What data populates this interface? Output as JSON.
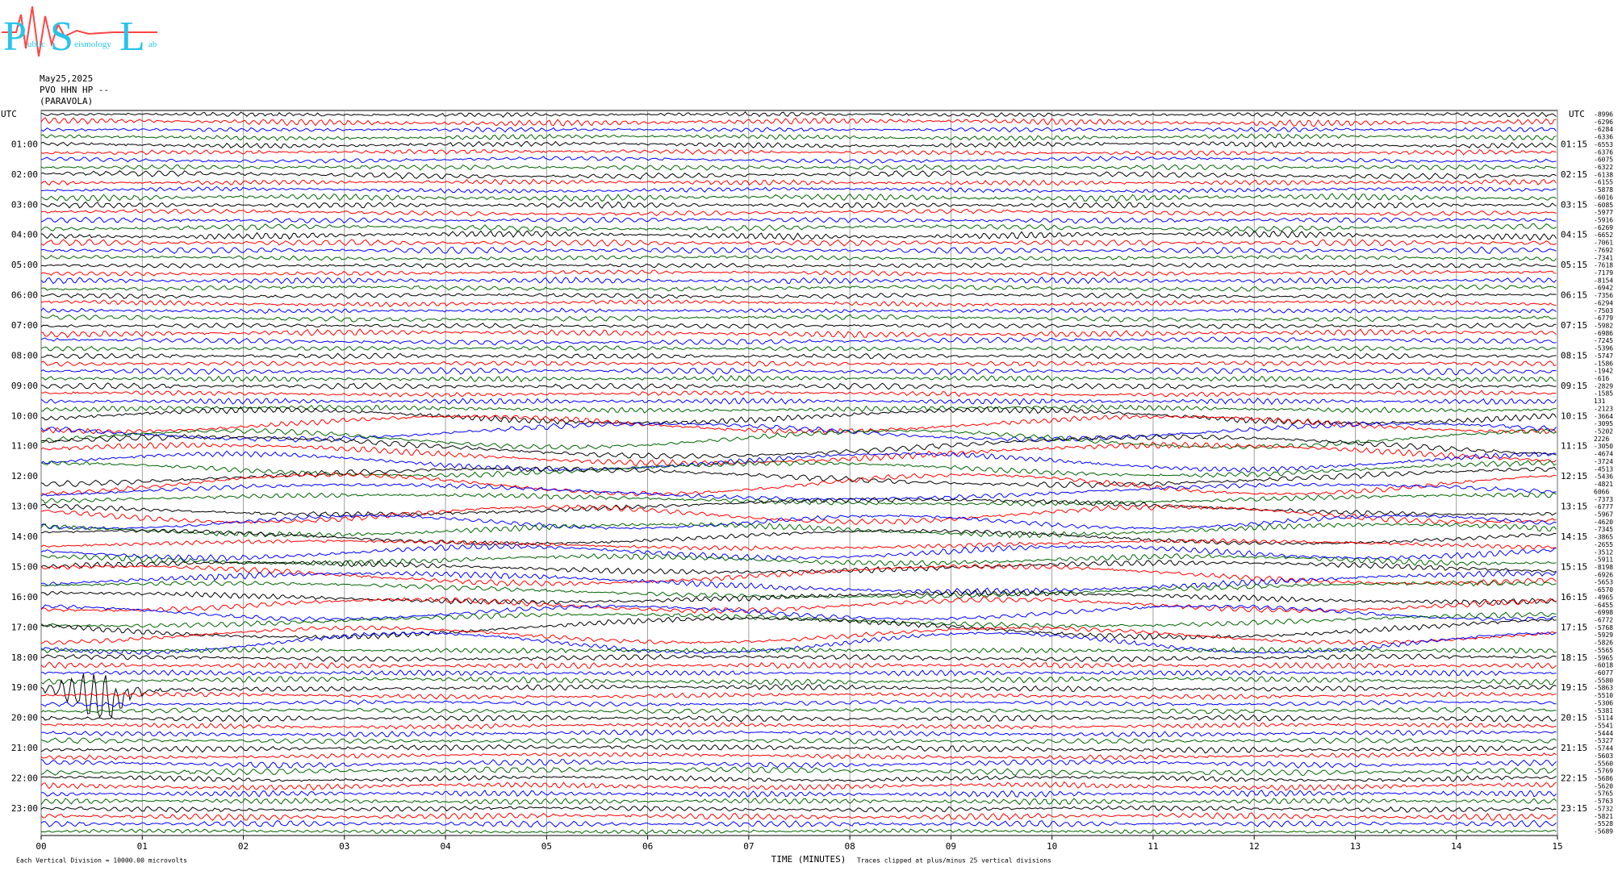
{
  "logo": {
    "letters": [
      "P",
      "S",
      "L"
    ],
    "words": [
      "ublic",
      "eismology",
      "ab"
    ]
  },
  "header": {
    "date": "May25,2025",
    "station": "PVO HHN HP --",
    "location": "(PARAVOLA)"
  },
  "chart_data": {
    "type": "helicorder",
    "xlabel": "TIME (MINUTES)",
    "xlim": [
      0,
      15
    ],
    "xticks": [
      {
        "value": 0,
        "label": "00"
      },
      {
        "value": 1,
        "label": "01"
      },
      {
        "value": 2,
        "label": "02"
      },
      {
        "value": 3,
        "label": "03"
      },
      {
        "value": 4,
        "label": "04"
      },
      {
        "value": 5,
        "label": "05"
      },
      {
        "value": 6,
        "label": "06"
      },
      {
        "value": 7,
        "label": "07"
      },
      {
        "value": 8,
        "label": "08"
      },
      {
        "value": 9,
        "label": "09"
      },
      10,
      11,
      12,
      13,
      14,
      15
    ],
    "grid": true,
    "time_zone": "UTC",
    "left_labels": [
      "01:00",
      "02:00",
      "03:00",
      "04:00",
      "05:00",
      "06:00",
      "07:00",
      "08:00",
      "09:00",
      "10:00",
      "11:00",
      "12:00",
      "13:00",
      "14:00",
      "15:00",
      "16:00",
      "17:00",
      "18:00",
      "19:00",
      "20:00",
      "21:00",
      "22:00",
      "23:00"
    ],
    "right_labels": [
      "01:15",
      "02:15",
      "03:15",
      "04:15",
      "05:15",
      "06:15",
      "07:15",
      "08:15",
      "09:15",
      "10:15",
      "11:15",
      "12:15",
      "13:15",
      "14:15",
      "15:15",
      "16:15",
      "17:15",
      "18:15",
      "19:15",
      "20:15",
      "21:15",
      "22:15",
      "23:15"
    ],
    "trace_values": [
      -8996,
      -6296,
      -6284,
      -6336,
      -6553,
      -6376,
      -6075,
      -6322,
      -6138,
      -6155,
      -5878,
      -6016,
      -6085,
      -5977,
      -5916,
      -6269,
      -6652,
      -7061,
      -7692,
      -7341,
      -7618,
      -7179,
      -8154,
      -6942,
      -7356,
      -6294,
      -7503,
      -6779,
      -5982,
      -6986,
      -7245,
      -5396,
      -5747,
      -1586,
      -1942,
      -616,
      -2829,
      -1585,
      131,
      -2123,
      -3664,
      -3095,
      -5202,
      2226,
      -3050,
      -4674,
      -3724,
      -4513,
      -5436,
      -4821,
      6066,
      -7373,
      -6777,
      -5967,
      -4620,
      -7345,
      -3865,
      -2655,
      -3512,
      -5911,
      -8198,
      -6926,
      -5653,
      -6570,
      -4965,
      -6455,
      -6998,
      -6772,
      -5768,
      -5929,
      -5826,
      -5565,
      -5965,
      -6018,
      -6077,
      -5580,
      -5863,
      -5510,
      -5306,
      -5381,
      -5114,
      -5541,
      -5444,
      -5327,
      -5744,
      -5603,
      -5560,
      -5769,
      -5686,
      -5620,
      -5765,
      -5763,
      -5732,
      -5821,
      -5528,
      -5689
    ],
    "colors": [
      "#000000",
      "#ff0000",
      "#0000ff",
      "#006400"
    ],
    "footer_scale": "Each Vertical Division = 10000.00 microvolts",
    "footer_note": "Traces clipped at plus/minus 25 vertical divisions"
  }
}
